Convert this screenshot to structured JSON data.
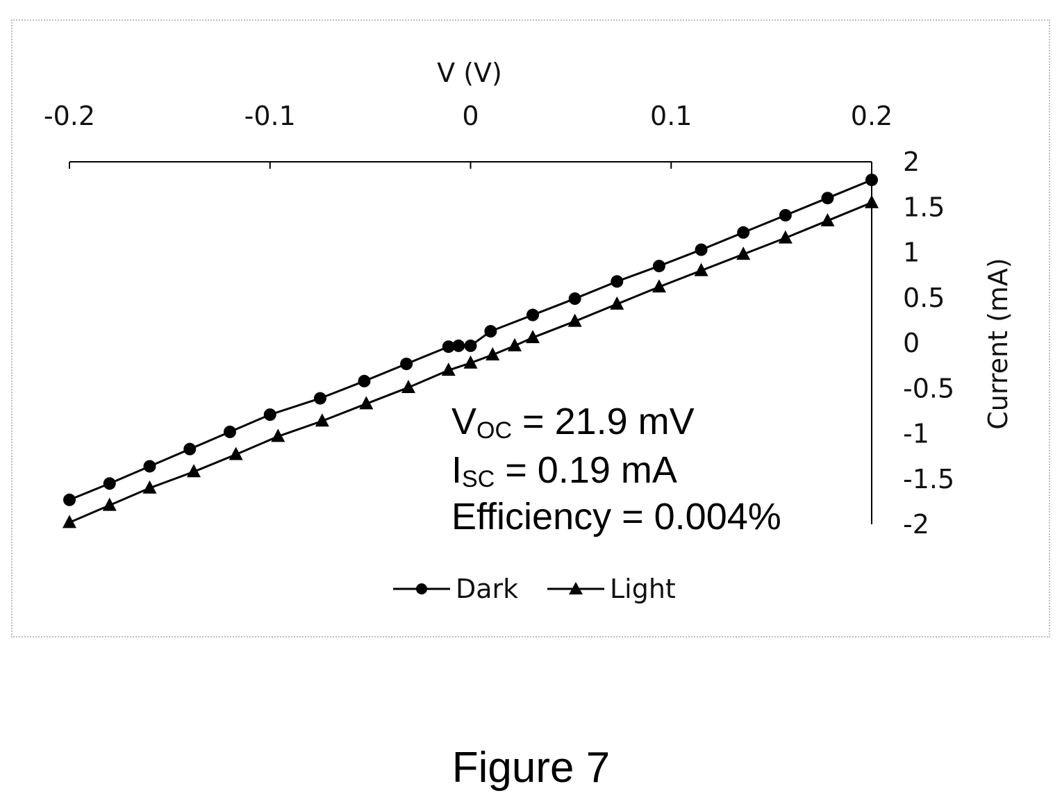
{
  "chart_data": {
    "type": "line",
    "xlabel": "V (V)",
    "ylabel": "Current (mA)",
    "xlim": [
      -0.2,
      0.2
    ],
    "ylim": [
      -2,
      2
    ],
    "x_axis_position": "top",
    "y_axis_position": "right",
    "grid": false,
    "legend_position": "bottom",
    "x_ticks": [
      "-0.2",
      "-0.1",
      "0",
      "0.1",
      "0.2"
    ],
    "x_tick_values": [
      -0.2,
      -0.1,
      0,
      0.1,
      0.2
    ],
    "y_ticks": [
      "2",
      "1.5",
      "1",
      "0.5",
      "0",
      "-0.5",
      "-1",
      "-1.5",
      "-2"
    ],
    "y_tick_values": [
      2,
      1.5,
      1,
      0.5,
      0,
      -0.5,
      -1,
      -1.5,
      -2
    ],
    "series": [
      {
        "name": "Dark",
        "marker": "circle",
        "color": "#000000",
        "x": [
          -0.2,
          -0.18,
          -0.16,
          -0.14,
          -0.12,
          -0.1,
          -0.075,
          -0.053,
          -0.032,
          -0.011,
          -0.006,
          0,
          0.01,
          0.031,
          0.052,
          0.073,
          0.094,
          0.115,
          0.136,
          0.157,
          0.178,
          0.2
        ],
        "y": [
          -1.73,
          -1.55,
          -1.36,
          -1.17,
          -0.98,
          -0.79,
          -0.61,
          -0.42,
          -0.23,
          -0.04,
          -0.03,
          -0.03,
          0.13,
          0.31,
          0.49,
          0.68,
          0.85,
          1.03,
          1.22,
          1.41,
          1.6,
          1.8
        ]
      },
      {
        "name": "Light",
        "marker": "triangle",
        "color": "#000000",
        "x": [
          -0.2,
          -0.18,
          -0.16,
          -0.138,
          -0.117,
          -0.096,
          -0.074,
          -0.052,
          -0.031,
          -0.011,
          0,
          0.011,
          0.022,
          0.031,
          0.052,
          0.073,
          0.094,
          0.115,
          0.136,
          0.157,
          0.178,
          0.2
        ],
        "y": [
          -1.98,
          -1.79,
          -1.6,
          -1.42,
          -1.23,
          -1.03,
          -0.86,
          -0.67,
          -0.49,
          -0.3,
          -0.22,
          -0.13,
          -0.03,
          0.06,
          0.24,
          0.43,
          0.62,
          0.8,
          0.98,
          1.16,
          1.35,
          1.55
        ]
      }
    ]
  },
  "annotation": {
    "voc": {
      "main": "V",
      "sub": "OC",
      "rest": " = 21.9 mV"
    },
    "isc": {
      "main": "I",
      "sub": "SC",
      "rest": " = 0.19 mA"
    },
    "efficiency": "Efficiency = 0.004%"
  },
  "figure_caption": "Figure 7"
}
